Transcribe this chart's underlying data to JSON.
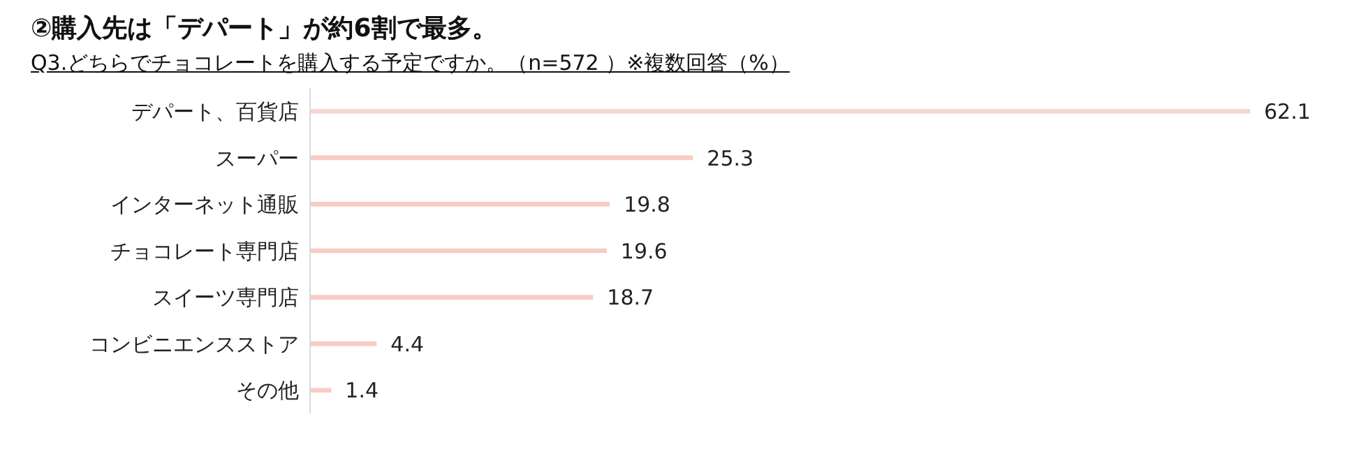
{
  "chart_data": {
    "type": "bar",
    "orientation": "horizontal",
    "title": "②購入先は「デパート」が約6割で最多。",
    "subtitle": "Q3.どちらでチョコレートを購入する予定ですか。（n=572 ）※複数回答（%）",
    "categories": [
      "デパート、百貨店",
      "スーパー",
      "インターネット通販",
      "チョコレート専門店",
      "スイーツ専門店",
      "コンビニエンスストア",
      "その他"
    ],
    "values": [
      62.1,
      25.3,
      19.8,
      19.6,
      18.7,
      4.4,
      1.4
    ],
    "colors": [
      "#f8d4d2",
      "#f8cbc6",
      "#f8cbc6",
      "#f8cbc6",
      "#f8cbc6",
      "#f8cbc6",
      "#f8cbc6"
    ],
    "data_labels": true,
    "grid": false,
    "legend": false
  }
}
